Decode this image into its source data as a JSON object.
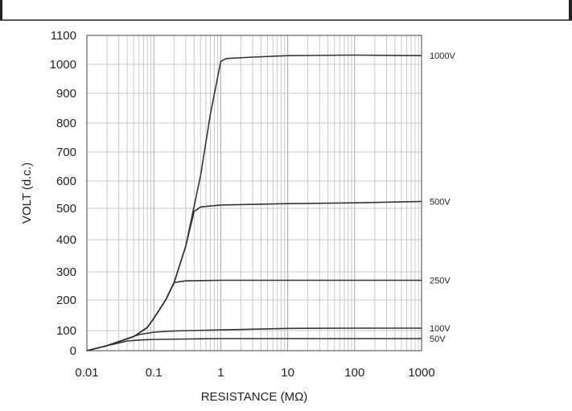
{
  "chart_data": {
    "type": "line",
    "title": "",
    "xlabel": "RESISTANCE (MΩ)",
    "ylabel": "VOLT (d.c.)",
    "x_scale": "log",
    "xlim": [
      0.01,
      1000
    ],
    "x_ticks": [
      0.01,
      0.1,
      1,
      10,
      100,
      1000
    ],
    "x_tick_labels": [
      "0.01",
      "0.1",
      "1",
      "10",
      "100",
      "1000"
    ],
    "y_ticks": [
      0,
      100,
      200,
      300,
      400,
      500,
      600,
      700,
      800,
      900,
      1000,
      1100
    ],
    "y_tick_labels": [
      "0",
      "100",
      "200",
      "300",
      "400",
      "500",
      "600",
      "700",
      "800",
      "900",
      "1000",
      "1100"
    ],
    "grid": true,
    "series_colors": {
      "line": "#333333",
      "grid": "#c8c8c8",
      "axis": "#444444"
    },
    "series": [
      {
        "name": "1000V",
        "points": [
          [
            0.01,
            0
          ],
          [
            0.02,
            25
          ],
          [
            0.05,
            70
          ],
          [
            0.08,
            110
          ],
          [
            0.1,
            140
          ],
          [
            0.15,
            200
          ],
          [
            0.2,
            260
          ],
          [
            0.3,
            380
          ],
          [
            0.5,
            620
          ],
          [
            0.7,
            830
          ],
          [
            1,
            1010
          ],
          [
            1.2,
            1020
          ],
          [
            3,
            1025
          ],
          [
            10,
            1030
          ],
          [
            100,
            1032
          ],
          [
            1000,
            1030
          ]
        ]
      },
      {
        "name": "500V",
        "points": [
          [
            0.01,
            0
          ],
          [
            0.02,
            25
          ],
          [
            0.05,
            70
          ],
          [
            0.08,
            110
          ],
          [
            0.1,
            140
          ],
          [
            0.15,
            200
          ],
          [
            0.2,
            260
          ],
          [
            0.3,
            380
          ],
          [
            0.4,
            490
          ],
          [
            0.5,
            505
          ],
          [
            1,
            512
          ],
          [
            10,
            517
          ],
          [
            100,
            520
          ],
          [
            1000,
            525
          ]
        ]
      },
      {
        "name": "250V",
        "points": [
          [
            0.01,
            0
          ],
          [
            0.02,
            25
          ],
          [
            0.05,
            70
          ],
          [
            0.08,
            110
          ],
          [
            0.1,
            140
          ],
          [
            0.15,
            200
          ],
          [
            0.2,
            262
          ],
          [
            0.3,
            268
          ],
          [
            1,
            270
          ],
          [
            10,
            270
          ],
          [
            100,
            270
          ],
          [
            1000,
            270
          ]
        ]
      },
      {
        "name": "100V",
        "points": [
          [
            0.01,
            0
          ],
          [
            0.02,
            25
          ],
          [
            0.04,
            60
          ],
          [
            0.06,
            80
          ],
          [
            0.1,
            92
          ],
          [
            0.2,
            98
          ],
          [
            1,
            102
          ],
          [
            10,
            107
          ],
          [
            100,
            108
          ],
          [
            1000,
            108
          ]
        ]
      },
      {
        "name": "50V",
        "points": [
          [
            0.01,
            0
          ],
          [
            0.02,
            25
          ],
          [
            0.04,
            48
          ],
          [
            0.06,
            53
          ],
          [
            0.1,
            56
          ],
          [
            0.3,
            58
          ],
          [
            1,
            60
          ],
          [
            10,
            60
          ],
          [
            100,
            60
          ],
          [
            1000,
            60
          ]
        ]
      }
    ]
  }
}
